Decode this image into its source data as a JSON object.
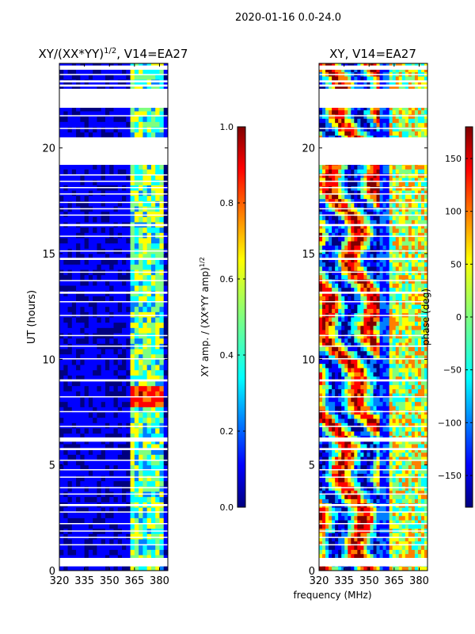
{
  "suptitle": "2020-01-16 0.0-24.0",
  "chart_data": [
    {
      "type": "heatmap",
      "title_main": "XY/(XX*YY)",
      "title_sup": "1/2",
      "title_rest": ", V14=EA27",
      "ylabel": "UT (hours)",
      "xlabel": "",
      "xlim": [
        320,
        385
      ],
      "ylim": [
        0,
        24
      ],
      "xticks": [
        "320",
        "335",
        "350",
        "365",
        "380"
      ],
      "yticks": [
        "0",
        "5",
        "10",
        "15",
        "20"
      ],
      "colorbar": {
        "range": [
          0,
          1
        ],
        "ticks": [
          "0.0",
          "0.2",
          "0.4",
          "0.6",
          "0.8",
          "1.0"
        ],
        "label_main": "XY amp. / (XX*YY amp)",
        "label_sup": "1/2"
      },
      "colormap": [
        "#00007f",
        "#0000ff",
        "#007fff",
        "#00ffff",
        "#7fff7f",
        "#ffff00",
        "#ff7f00",
        "#ff0000",
        "#7f0000"
      ],
      "rfi_band_mhz": [
        363,
        382
      ],
      "hot_spot": {
        "time": [
          7.7,
          8.8
        ],
        "freq_mhz": [
          363,
          382
        ],
        "value": 0.95
      }
    },
    {
      "type": "heatmap",
      "title_main": "XY, V14=EA27",
      "xlabel": "frequency (MHz)",
      "ylabel": "",
      "xlim": [
        320,
        385
      ],
      "ylim": [
        0,
        24
      ],
      "xticks": [
        "320",
        "335",
        "350",
        "365",
        "380"
      ],
      "yticks": [
        "0",
        "5",
        "10",
        "15",
        "20"
      ],
      "colorbar": {
        "range": [
          -180,
          180
        ],
        "ticks": [
          "−150",
          "−100",
          "−50",
          "0",
          "50",
          "100",
          "150"
        ],
        "label_main": "phase (deg)"
      },
      "colormap": [
        "#00007f",
        "#0000ff",
        "#007fff",
        "#00ffff",
        "#7fff7f",
        "#ffff00",
        "#ff7f00",
        "#ff0000",
        "#7f0000"
      ]
    }
  ],
  "data_gaps_hours": [
    [
      0.2,
      0.6
    ],
    [
      1.2,
      1.25
    ],
    [
      1.55,
      1.6
    ],
    [
      1.85,
      1.9
    ],
    [
      2.2,
      2.25
    ],
    [
      2.75,
      2.8
    ],
    [
      3.05,
      3.15
    ],
    [
      3.6,
      3.65
    ],
    [
      3.9,
      3.95
    ],
    [
      4.4,
      4.45
    ],
    [
      4.75,
      4.8
    ],
    [
      5.2,
      5.25
    ],
    [
      5.7,
      5.8
    ],
    [
      6.1,
      6.3
    ],
    [
      6.8,
      6.85
    ],
    [
      7.5,
      7.55
    ],
    [
      8.2,
      8.25
    ],
    [
      8.95,
      9.05
    ],
    [
      10.0,
      10.05
    ],
    [
      10.6,
      10.65
    ],
    [
      11.1,
      11.15
    ],
    [
      12.05,
      12.1
    ],
    [
      12.7,
      12.75
    ],
    [
      13.1,
      13.2
    ],
    [
      13.7,
      13.75
    ],
    [
      14.1,
      14.15
    ],
    [
      14.7,
      14.8
    ],
    [
      15.1,
      15.15
    ],
    [
      15.8,
      15.85
    ],
    [
      16.3,
      16.4
    ],
    [
      16.8,
      16.85
    ],
    [
      17.1,
      17.15
    ],
    [
      17.4,
      17.45
    ],
    [
      17.8,
      17.85
    ],
    [
      18.1,
      18.15
    ],
    [
      18.4,
      18.45
    ],
    [
      18.7,
      18.75
    ],
    [
      19.2,
      20.5
    ],
    [
      20.9,
      20.95
    ],
    [
      21.5,
      21.55
    ],
    [
      21.9,
      22.8
    ],
    [
      22.9,
      23.0
    ],
    [
      23.1,
      23.2
    ],
    [
      23.45,
      23.5
    ],
    [
      23.7,
      23.9
    ]
  ]
}
